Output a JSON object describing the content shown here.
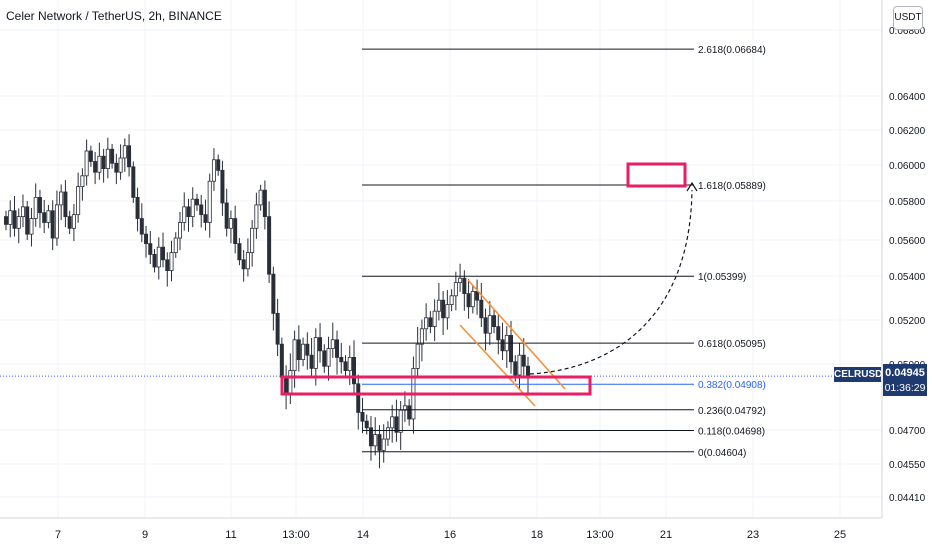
{
  "header": {
    "title": "Celer Network / TetherUS, 2h, BINANCE",
    "currency": "USDT"
  },
  "price_tag": {
    "symbol": "CELRUSDT",
    "price": "0.04945",
    "countdown": "01:36:29"
  },
  "colors": {
    "up": "#26a69a",
    "down": "#ef5350",
    "candle": "#2a2e39",
    "fib_line": "#131722",
    "fib_highlight": "#2962ff",
    "channel": "#f7913a",
    "box": "#e91e63",
    "price_line": "#2962ff",
    "price_tag_bg": "#1e3a6e"
  },
  "chart_data": {
    "type": "candlestick",
    "title": "Celer Network / TetherUS, 2h, BINANCE",
    "ylim": [
      0.0435,
      0.0685
    ],
    "x_tick_labels": [
      "7",
      "9",
      "11",
      "13:00",
      "14",
      "16",
      "18",
      "13:00",
      "21",
      "23",
      "25"
    ],
    "y_tick_labels": [
      "0.06800",
      "0.06400",
      "0.06200",
      "0.06000",
      "0.05800",
      "0.05600",
      "0.05400",
      "0.05200",
      "0.05000",
      "0.04700",
      "0.04550",
      "0.04410"
    ],
    "current_price": 0.04945,
    "fibonacci": [
      {
        "label": "2.618(0.06684)",
        "value": 0.06684
      },
      {
        "label": "1.618(0.05889)",
        "value": 0.05889
      },
      {
        "label": "1(0.05399)",
        "value": 0.05399
      },
      {
        "label": "0.618(0.05095)",
        "value": 0.05095
      },
      {
        "label": "0.382(0.04908)",
        "value": 0.04908,
        "highlight": true
      },
      {
        "label": "0.236(0.04792)",
        "value": 0.04792
      },
      {
        "label": "0.118(0.04698)",
        "value": 0.04698
      },
      {
        "label": "0(0.04604)",
        "value": 0.04604
      }
    ],
    "closes": [
      0.0568,
      0.0575,
      0.0566,
      0.0572,
      0.0577,
      0.0563,
      0.0571,
      0.0582,
      0.0574,
      0.0569,
      0.0575,
      0.0561,
      0.0578,
      0.0585,
      0.0572,
      0.0566,
      0.0573,
      0.0588,
      0.0594,
      0.0608,
      0.0602,
      0.0596,
      0.0605,
      0.0598,
      0.0609,
      0.0601,
      0.0596,
      0.0604,
      0.0611,
      0.0599,
      0.0582,
      0.0571,
      0.0563,
      0.0558,
      0.0552,
      0.0545,
      0.0556,
      0.0549,
      0.0543,
      0.0553,
      0.0561,
      0.0569,
      0.0577,
      0.0572,
      0.0581,
      0.0578,
      0.0573,
      0.0569,
      0.0591,
      0.0603,
      0.0597,
      0.0579,
      0.0566,
      0.0571,
      0.0558,
      0.0549,
      0.0544,
      0.0553,
      0.0566,
      0.0578,
      0.0586,
      0.0572,
      0.0541,
      0.0523,
      0.0509,
      0.0494,
      0.0486,
      0.0497,
      0.0511,
      0.0502,
      0.0509,
      0.0504,
      0.0498,
      0.0512,
      0.0506,
      0.0499,
      0.0507,
      0.0511,
      0.0503,
      0.0501,
      0.0497,
      0.0503,
      0.0491,
      0.0478,
      0.0474,
      0.0471,
      0.0463,
      0.0468,
      0.0461,
      0.0466,
      0.0471,
      0.0476,
      0.0469,
      0.0479,
      0.0481,
      0.0475,
      0.0498,
      0.0509,
      0.0516,
      0.0521,
      0.0517,
      0.0524,
      0.0529,
      0.0521,
      0.0527,
      0.0531,
      0.0537,
      0.0539,
      0.0532,
      0.0526,
      0.0533,
      0.0529,
      0.0521,
      0.0514,
      0.0522,
      0.0517,
      0.0511,
      0.0506,
      0.0513,
      0.0501,
      0.0495,
      0.0504,
      0.0499,
      0.0494
    ]
  }
}
